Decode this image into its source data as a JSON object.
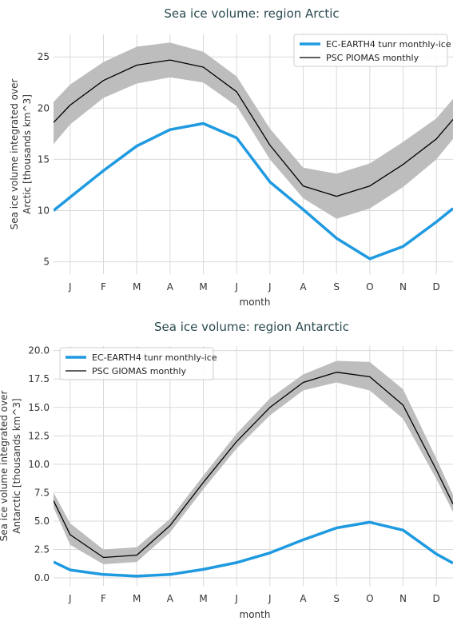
{
  "chart_data": [
    {
      "type": "line",
      "title": "Sea ice volume: region Arctic",
      "xlabel": "month",
      "ylabel_lines": [
        "Sea ice volume integrated over",
        "Arctic [thousands km^3]"
      ],
      "categories": [
        "J",
        "F",
        "M",
        "A",
        "M",
        "J",
        "J",
        "A",
        "S",
        "O",
        "N",
        "D"
      ],
      "x": [
        0.5,
        1.5,
        2.5,
        3.5,
        4.5,
        5.5,
        6.5,
        7.5,
        8.5,
        9.5,
        10.5,
        11.5
      ],
      "xlim": [
        0,
        12
      ],
      "ylim": [
        3.8,
        27.2
      ],
      "yticks": [
        5,
        10,
        15,
        20,
        25
      ],
      "ytick_labels": [
        "5",
        "10",
        "15",
        "20",
        "25"
      ],
      "grid": true,
      "legend_position": "top-right",
      "series": [
        {
          "name": "EC-EARTH4 tunr monthly-ice",
          "color": "#1f9ae0",
          "x": [
            0,
            0.5,
            1.5,
            2.5,
            3.5,
            4.5,
            5.5,
            6.5,
            7.5,
            8.5,
            9.5,
            10.5,
            11.5,
            12
          ],
          "values": [
            10.0,
            11.3,
            13.9,
            16.3,
            17.9,
            18.5,
            17.1,
            12.8,
            10.1,
            7.3,
            5.3,
            6.5,
            8.9,
            10.2
          ]
        },
        {
          "name": "PSC PIOMAS monthly",
          "color": "#000000",
          "x": [
            0,
            0.5,
            1.5,
            2.5,
            3.5,
            4.5,
            5.5,
            6.5,
            7.5,
            8.5,
            9.5,
            10.5,
            11.5,
            12
          ],
          "values": [
            18.6,
            20.3,
            22.7,
            24.2,
            24.7,
            24.0,
            21.6,
            16.4,
            12.4,
            11.4,
            12.4,
            14.5,
            17.0,
            18.9
          ],
          "band_lower": [
            16.5,
            18.4,
            21.0,
            22.4,
            23.0,
            22.5,
            20.2,
            15.0,
            11.2,
            9.2,
            10.2,
            12.3,
            15.0,
            17.0
          ],
          "band_upper": [
            20.6,
            22.3,
            24.5,
            26.0,
            26.4,
            25.5,
            23.1,
            18.0,
            14.2,
            13.6,
            14.6,
            16.7,
            19.0,
            20.9
          ]
        }
      ]
    },
    {
      "type": "line",
      "title": "Sea ice volume: region Antarctic",
      "xlabel": "month",
      "ylabel_lines": [
        "Sea ice volume integrated over",
        "Antarctic [thousands km^3]"
      ],
      "categories": [
        "J",
        "F",
        "M",
        "A",
        "M",
        "J",
        "J",
        "A",
        "S",
        "O",
        "N",
        "D"
      ],
      "x": [
        0.5,
        1.5,
        2.5,
        3.5,
        4.5,
        5.5,
        6.5,
        7.5,
        8.5,
        9.5,
        10.5,
        11.5
      ],
      "xlim": [
        0,
        12
      ],
      "ylim": [
        -0.7,
        20.4
      ],
      "yticks": [
        0,
        2.5,
        5,
        7.5,
        10,
        12.5,
        15,
        17.5,
        20
      ],
      "ytick_labels": [
        "0.0",
        "2.5",
        "5.0",
        "7.5",
        "10.0",
        "12.5",
        "15.0",
        "17.5",
        "20.0"
      ],
      "grid": true,
      "legend_position": "top-left",
      "series": [
        {
          "name": "EC-EARTH4 tunr monthly-ice",
          "color": "#1f9ae0",
          "x": [
            0,
            0.5,
            1.5,
            2.5,
            3.5,
            4.5,
            5.5,
            6.5,
            7.5,
            8.5,
            9.5,
            10.5,
            11.5,
            12
          ],
          "values": [
            1.4,
            0.7,
            0.3,
            0.15,
            0.3,
            0.75,
            1.35,
            2.2,
            3.35,
            4.4,
            4.9,
            4.2,
            2.1,
            1.3
          ],
          "band_lower": null,
          "band_upper": null
        },
        {
          "name": "PSC GIOMAS monthly",
          "color": "#000000",
          "x": [
            0,
            0.5,
            1.5,
            2.5,
            3.5,
            4.5,
            5.5,
            6.5,
            7.5,
            8.5,
            9.5,
            10.5,
            11.5,
            12
          ],
          "values": [
            6.8,
            3.8,
            1.8,
            2.0,
            4.6,
            8.4,
            12.0,
            15.0,
            17.2,
            18.1,
            17.7,
            15.2,
            9.5,
            6.5
          ],
          "band_lower": [
            6.2,
            2.9,
            1.2,
            1.4,
            4.0,
            7.8,
            11.4,
            14.3,
            16.5,
            17.2,
            16.5,
            14.0,
            8.7,
            5.8
          ],
          "band_upper": [
            7.5,
            4.8,
            2.5,
            2.7,
            5.2,
            9.0,
            12.7,
            15.8,
            17.9,
            19.1,
            19.0,
            16.6,
            10.5,
            7.3
          ]
        }
      ]
    }
  ]
}
